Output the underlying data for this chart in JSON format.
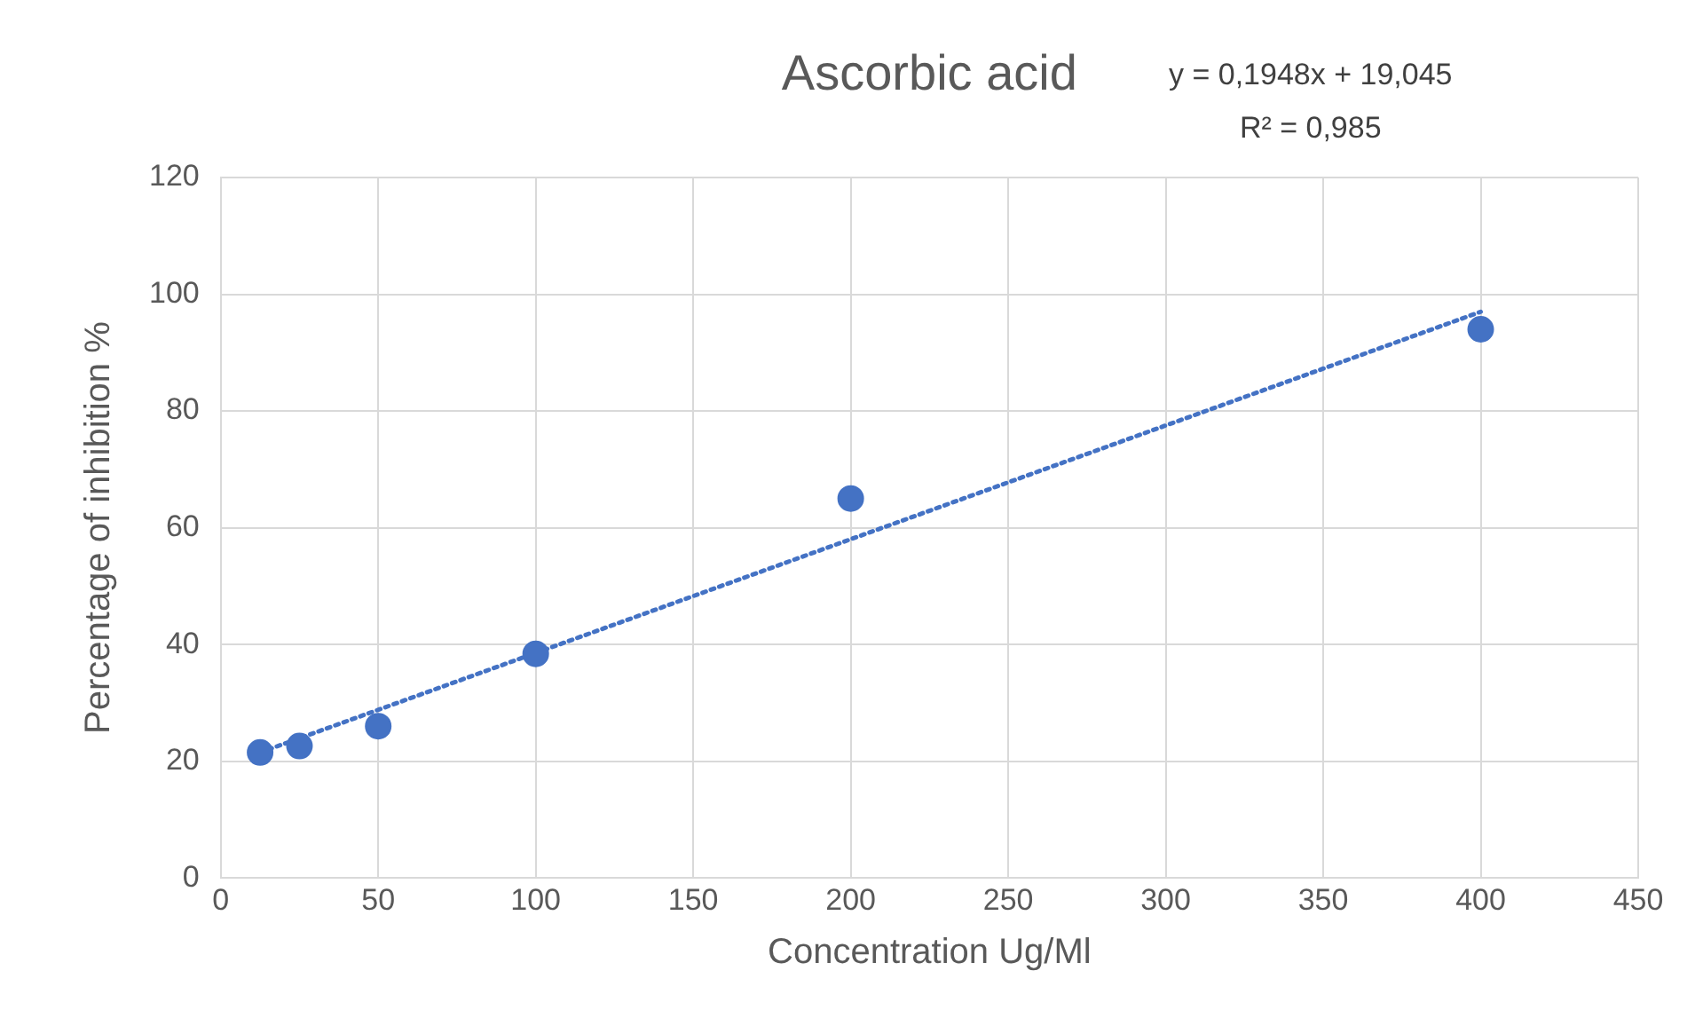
{
  "chart_data": {
    "type": "scatter",
    "title": "Ascorbic acid",
    "xlabel": "Concentration Ug/Ml",
    "ylabel": "Percentage of inhibition %",
    "annotations": [
      "y = 0,1948x + 19,045",
      "R² = 0,985"
    ],
    "series": [
      {
        "color": "#4472c4",
        "marker": "circle",
        "x": [
          12.5,
          25,
          50,
          100,
          200,
          400
        ],
        "values": [
          21.5,
          22.6,
          26,
          38.4,
          65,
          94
        ]
      },
      {
        "type": "line",
        "color": "#4472c4",
        "marker": "none",
        "line_style": "dotted",
        "x": [
          12.5,
          400
        ],
        "values": [
          21.5,
          97
        ]
      }
    ],
    "xlim": [
      0,
      450
    ],
    "xticks": [
      0,
      50,
      100,
      150,
      200,
      250,
      300,
      350,
      400,
      450
    ],
    "ylim": [
      0,
      120
    ],
    "yticks": [
      0,
      20,
      40,
      60,
      80,
      100,
      120
    ],
    "grid": true
  }
}
